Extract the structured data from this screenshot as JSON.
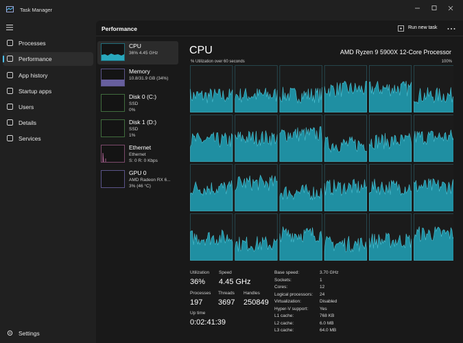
{
  "window": {
    "title": "Task Manager"
  },
  "nav": {
    "items": [
      "Processes",
      "Performance",
      "App history",
      "Startup apps",
      "Users",
      "Details",
      "Services"
    ],
    "selected": 1,
    "settings": "Settings"
  },
  "header": {
    "title": "Performance",
    "action": "Run new task"
  },
  "devices": [
    {
      "name": "CPU",
      "lines": [
        "36% 4.45 GHz"
      ]
    },
    {
      "name": "Memory",
      "lines": [
        "10.8/31.9 GB (34%)"
      ]
    },
    {
      "name": "Disk 0 (C:)",
      "lines": [
        "SSD",
        "0%"
      ]
    },
    {
      "name": "Disk 1 (D:)",
      "lines": [
        "SSD",
        "1%"
      ]
    },
    {
      "name": "Ethernet",
      "lines": [
        "Ethernet",
        "S: 0 R: 0 Kbps"
      ]
    },
    {
      "name": "GPU 0",
      "lines": [
        "AMD Radeon RX 6...",
        "3% (46 °C)"
      ]
    }
  ],
  "detail": {
    "title": "CPU",
    "processor": "AMD Ryzen 9 5900X 12-Core Processor",
    "graph_label": "% Utilization over 60 seconds",
    "graph_max": "100%",
    "stats": [
      {
        "label": "Utilization",
        "value": "36%"
      },
      {
        "label": "Speed",
        "value": "4.45 GHz"
      },
      {
        "label": "Processes",
        "value": "197"
      },
      {
        "label": "Threads",
        "value": "3697"
      },
      {
        "label": "Handles",
        "value": "250849"
      },
      {
        "label": "Up time",
        "value": "0:02:41:39"
      }
    ],
    "specs": [
      [
        "Base speed:",
        "3.70 GHz"
      ],
      [
        "Sockets:",
        "1"
      ],
      [
        "Cores:",
        "12"
      ],
      [
        "Logical processors:",
        "24"
      ],
      [
        "Virtualization:",
        "Disabled"
      ],
      [
        "Hyper-V support:",
        "Yes"
      ],
      [
        "L1 cache:",
        "768 KB"
      ],
      [
        "L2 cache:",
        "6.0 MB"
      ],
      [
        "L3 cache:",
        "64.0 MB"
      ]
    ]
  }
}
